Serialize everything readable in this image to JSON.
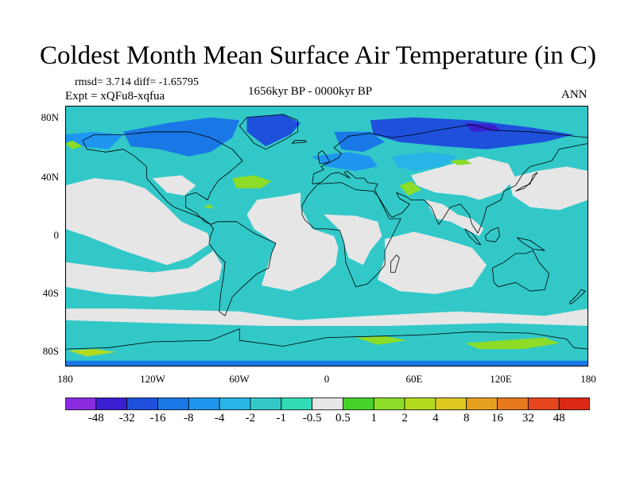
{
  "title": "Coldest Month Mean Surface Air Temperature (in C)",
  "stats": "rmsd= 3.714 diff= -1.65795",
  "experiment": "Expt = xQFu8-xqfua",
  "period": "1656kyr BP - 0000kyr BP",
  "season": "ANN",
  "lat_labels": [
    "80N",
    "40N",
    "0",
    "40S",
    "80S"
  ],
  "lon_labels": [
    "180",
    "120W",
    "60W",
    "0",
    "60E",
    "120E",
    "180"
  ],
  "colorbar": {
    "labels": [
      "-48",
      "-32",
      "-16",
      "-8",
      "-4",
      "-2",
      "-1",
      "-0.5",
      "0.5",
      "1",
      "2",
      "4",
      "8",
      "16",
      "32",
      "48"
    ],
    "colors": [
      "#8a2be2",
      "#3c1ed2",
      "#1e50dc",
      "#1a78e6",
      "#1e96f0",
      "#28b4e6",
      "#32c8c8",
      "#32dcb4",
      "#e6e6e6",
      "#46d228",
      "#8cdc28",
      "#b4dc1e",
      "#dcc81e",
      "#e6a01e",
      "#e6781e",
      "#e6461e",
      "#dc2814"
    ]
  },
  "map_colors": {
    "ocean_base": "#32c8c8",
    "neutral": "#e6e6e6",
    "cool": "#28b4e6",
    "cold": "#1e96f0",
    "colder": "#1a78e6",
    "coldest": "#1e50dc",
    "deep": "#3c1ed2",
    "warm": "#8cdc28",
    "warmer": "#b4dc1e",
    "hot": "#dcc81e",
    "coast": "#000000"
  }
}
